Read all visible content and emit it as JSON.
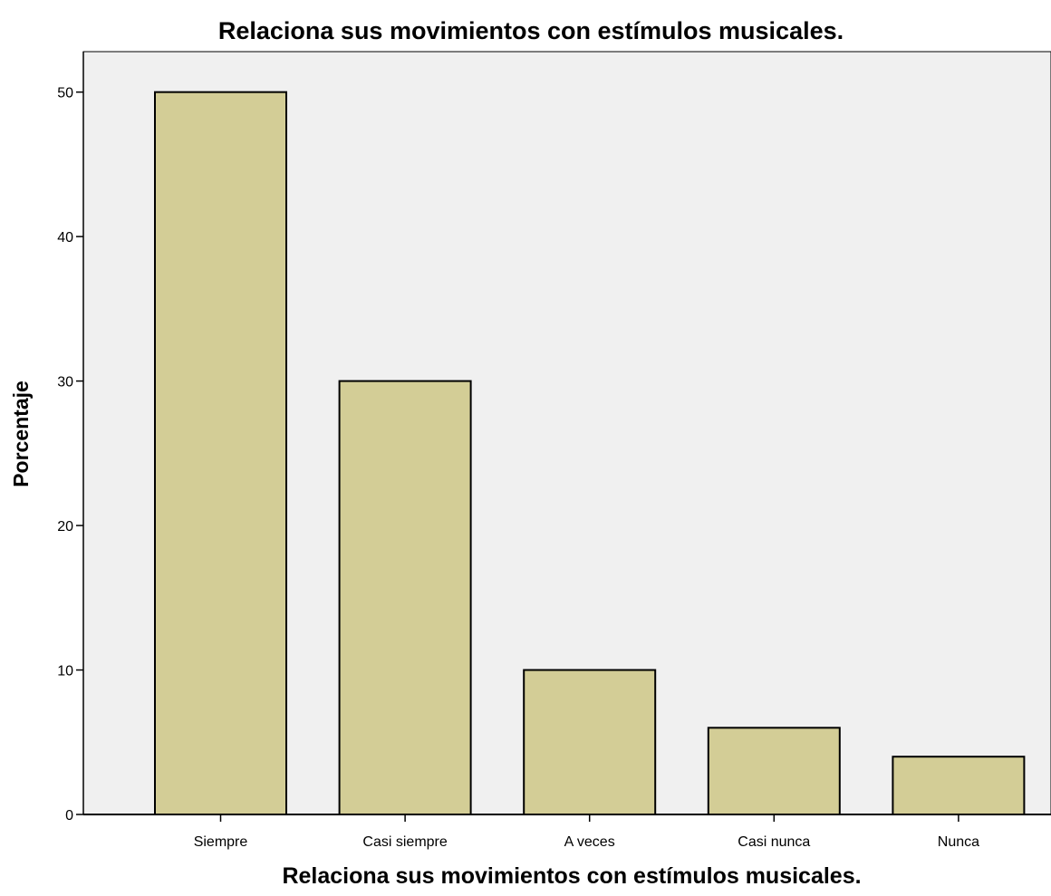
{
  "chart_data": {
    "type": "bar",
    "title": "Relaciona sus movimientos con estímulos musicales.",
    "xlabel": "Relaciona sus movimientos con estímulos musicales.",
    "ylabel": "Porcentaje",
    "categories": [
      "Siempre",
      "Casi siempre",
      "A veces",
      "Casi nunca",
      "Nunca"
    ],
    "values": [
      50,
      30,
      10,
      6,
      4
    ],
    "ylim": [
      0,
      52.8
    ],
    "yticks": [
      0,
      10,
      20,
      30,
      40,
      50
    ],
    "grid": false,
    "legend": "none",
    "colors": {
      "bar_fill": "#d3cd96",
      "bar_stroke": "#000000",
      "plot_background": "#f0f0f0",
      "axis": "#000000"
    }
  }
}
